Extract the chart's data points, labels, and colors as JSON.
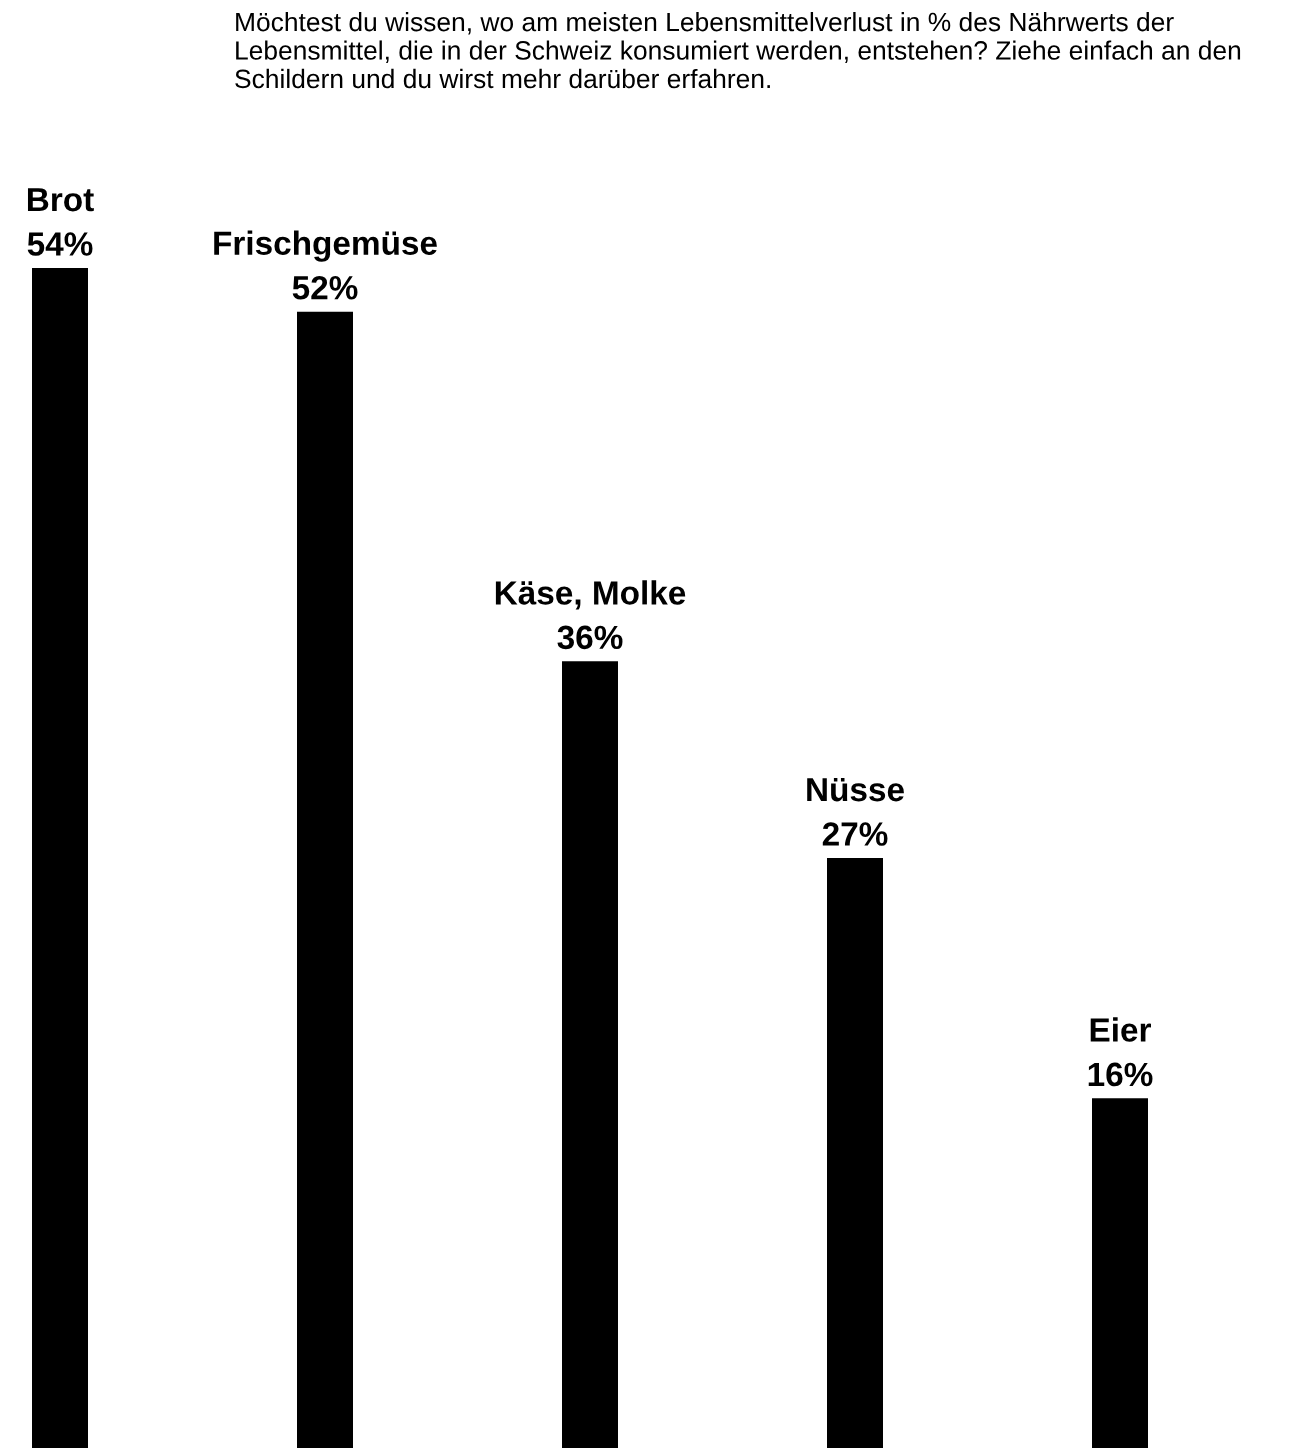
{
  "chart_data": {
    "type": "bar",
    "title": "Möchtest du wissen, wo am meisten Lebensmittelverlust in % des Nährwerts der Lebensmittel, die in der Schweiz konsumiert werden, entstehen? Ziehe einfach an den Schildern und du wirst mehr darüber erfahren.",
    "categories": [
      "Brot",
      "Frischgemüse",
      "Käse, Molke",
      "Nüsse",
      "Eier"
    ],
    "values": [
      54,
      52,
      36,
      27,
      16
    ],
    "value_labels": [
      "54%",
      "52%",
      "36%",
      "27%",
      "16%"
    ],
    "color": "#000000"
  }
}
